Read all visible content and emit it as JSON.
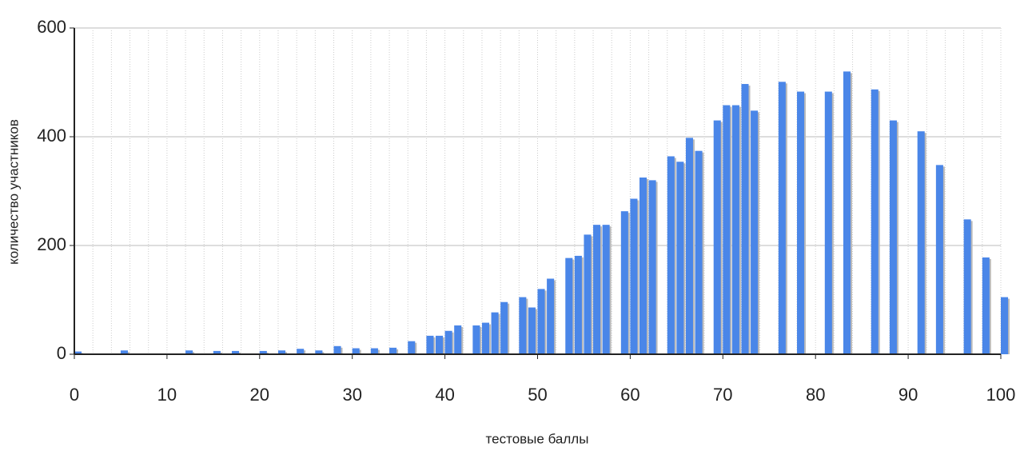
{
  "chart_data": {
    "type": "bar",
    "x_label": "тестовые баллы",
    "y_label": "количество участников",
    "x": [
      0,
      5,
      12,
      15,
      17,
      20,
      22,
      24,
      26,
      28,
      30,
      32,
      34,
      36,
      38,
      39,
      40,
      41,
      43,
      44,
      45,
      46,
      48,
      49,
      50,
      51,
      53,
      54,
      55,
      56,
      57,
      59,
      60,
      61,
      62,
      64,
      65,
      66,
      67,
      69,
      70,
      71,
      72,
      73,
      76,
      78,
      81,
      83,
      86,
      88,
      91,
      93,
      96,
      98,
      100
    ],
    "values": [
      5,
      7,
      7,
      6,
      6,
      6,
      7,
      10,
      7,
      15,
      11,
      11,
      12,
      24,
      34,
      34,
      43,
      53,
      53,
      58,
      77,
      96,
      105,
      86,
      120,
      139,
      177,
      181,
      220,
      238,
      238,
      263,
      286,
      325,
      320,
      364,
      354,
      398,
      374,
      430,
      458,
      458,
      497,
      448,
      501,
      483,
      483,
      520,
      487,
      430,
      410,
      348,
      248,
      178,
      105
    ],
    "color": "#4a86e8",
    "xlim": [
      0,
      100
    ],
    "xticks": [
      0,
      10,
      20,
      30,
      40,
      50,
      60,
      70,
      80,
      90,
      100
    ],
    "ylim": [
      0,
      600
    ],
    "yticks": [
      0,
      200,
      400,
      600
    ],
    "grid": true
  }
}
